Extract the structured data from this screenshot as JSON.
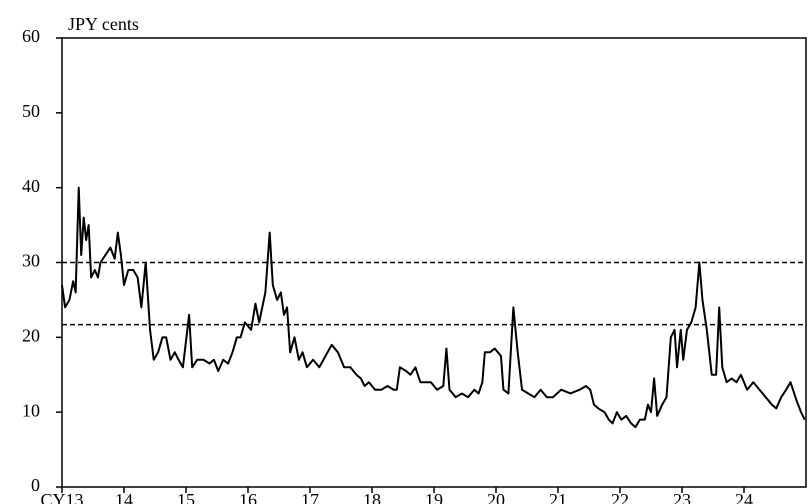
{
  "chart_data": {
    "type": "line",
    "y_label": "JPY cents",
    "color": "#000000",
    "x": [
      13.0,
      13.05,
      13.12,
      13.18,
      13.22,
      13.27,
      13.31,
      13.35,
      13.39,
      13.43,
      13.47,
      13.53,
      13.58,
      13.62,
      13.7,
      13.78,
      13.85,
      13.9,
      13.95,
      14.0,
      14.07,
      14.15,
      14.22,
      14.28,
      14.35,
      14.42,
      14.48,
      14.55,
      14.62,
      14.68,
      14.75,
      14.82,
      14.88,
      14.95,
      15.05,
      15.1,
      15.18,
      15.28,
      15.38,
      15.45,
      15.52,
      15.6,
      15.68,
      15.75,
      15.82,
      15.88,
      15.95,
      16.05,
      16.12,
      16.18,
      16.28,
      16.35,
      16.4,
      16.47,
      16.53,
      16.58,
      16.63,
      16.68,
      16.75,
      16.82,
      16.88,
      16.95,
      17.05,
      17.15,
      17.25,
      17.35,
      17.45,
      17.55,
      17.65,
      17.75,
      17.82,
      17.88,
      17.95,
      18.05,
      18.15,
      18.25,
      18.35,
      18.4,
      18.45,
      18.55,
      18.62,
      18.7,
      18.78,
      18.88,
      18.95,
      19.05,
      19.15,
      19.2,
      19.25,
      19.35,
      19.45,
      19.55,
      19.65,
      19.72,
      19.78,
      19.82,
      19.9,
      19.98,
      20.08,
      20.12,
      20.2,
      20.28,
      20.35,
      20.42,
      20.52,
      20.62,
      20.72,
      20.82,
      20.92,
      21.05,
      21.2,
      21.35,
      21.45,
      21.52,
      21.58,
      21.65,
      21.75,
      21.82,
      21.88,
      21.95,
      22.02,
      22.1,
      22.18,
      22.25,
      22.32,
      22.4,
      22.45,
      22.5,
      22.55,
      22.6,
      22.68,
      22.75,
      22.82,
      22.88,
      22.92,
      22.98,
      23.02,
      23.08,
      23.15,
      23.22,
      23.28,
      23.33,
      23.4,
      23.48,
      23.55,
      23.6,
      23.65,
      23.72,
      23.8,
      23.88,
      23.95,
      24.05,
      24.15,
      24.25,
      24.35,
      24.45,
      24.52,
      24.6,
      24.68,
      24.75,
      24.85,
      24.92,
      24.98
    ],
    "values": [
      27,
      24,
      25,
      27.5,
      26,
      40,
      31,
      36,
      33,
      35,
      28,
      29,
      28,
      30,
      31,
      32,
      30.5,
      34,
      31,
      27,
      29,
      29,
      28,
      24,
      30,
      21,
      17,
      18,
      20,
      20,
      17,
      18,
      17,
      16,
      23,
      16,
      17,
      17,
      16.5,
      17,
      15.5,
      17,
      16.5,
      18,
      20,
      20,
      22,
      21,
      24.5,
      22,
      26,
      34,
      27,
      25,
      26,
      23,
      24,
      18,
      20,
      17,
      18,
      16,
      17,
      16,
      17.5,
      19,
      18,
      16,
      16,
      15,
      14.5,
      13.5,
      14,
      13,
      13,
      13.5,
      13,
      13,
      16,
      15.5,
      15,
      16,
      14,
      14,
      14,
      13,
      13.5,
      18.5,
      13,
      12,
      12.5,
      12,
      13,
      12.5,
      14,
      18,
      18,
      18.5,
      17.5,
      13,
      12.5,
      24,
      18,
      13,
      12.5,
      12,
      13,
      12,
      12,
      13,
      12.5,
      13,
      13.5,
      13,
      11,
      10.5,
      10,
      9,
      8.5,
      10,
      9,
      9.5,
      8.5,
      8,
      9,
      9,
      11,
      10,
      14.5,
      9.5,
      11,
      12,
      20,
      21,
      16,
      21,
      17,
      21,
      22,
      24,
      30,
      25,
      21,
      15,
      15,
      24,
      16,
      14,
      14.5,
      14,
      15,
      13,
      14,
      13,
      12,
      11,
      10.5,
      12,
      13,
      14,
      11.5,
      10,
      9
    ],
    "reference_lines": [
      30,
      21.7
    ],
    "xlim": [
      13,
      25
    ],
    "xticks": [
      {
        "value": 13,
        "label": "CY13"
      },
      14,
      15,
      16,
      17,
      18,
      19,
      20,
      21,
      22,
      23,
      24
    ],
    "ylim": [
      0,
      60
    ],
    "yticks": [
      0,
      10,
      20,
      30,
      40,
      50,
      60
    ]
  }
}
